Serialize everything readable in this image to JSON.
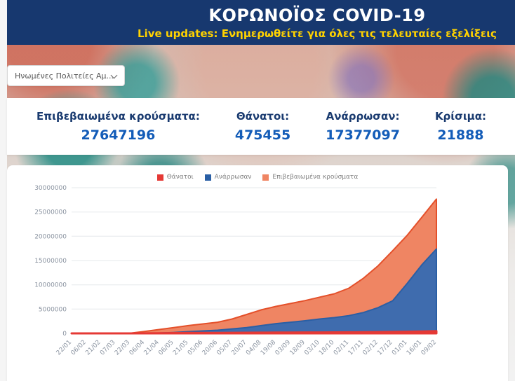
{
  "header": {
    "title": "ΚΟΡΩΝΟΪΟΣ COVID-19",
    "subtitle": "Live updates: Ενημερωθείτε για όλες τις τελευταίες εξελίξεις"
  },
  "country_select": {
    "value": "Ηνωμένες Πολιτείες Αμ..."
  },
  "stats": [
    {
      "label": "Επιβεβαιωμένα κρούσματα:",
      "value": "27647196"
    },
    {
      "label": "Θάνατοι:",
      "value": "475455"
    },
    {
      "label": "Ανάρρωσαν:",
      "value": "17377097"
    },
    {
      "label": "Κρίσιμα:",
      "value": "21888"
    }
  ],
  "chart_data": {
    "type": "area",
    "title": "",
    "legend_position": "top",
    "grid": true,
    "ylim": [
      0,
      30000000
    ],
    "yticks": [
      0,
      5000000,
      10000000,
      15000000,
      20000000,
      25000000,
      30000000
    ],
    "legend": [
      {
        "label": "Θάνατοι",
        "color": "#e53935"
      },
      {
        "label": "Ανάρρωσαν",
        "color": "#2a5fa5"
      },
      {
        "label": "Επιβεβαιωμένα κρούσματα",
        "color": "#ef8563"
      }
    ],
    "categories": [
      "22/01",
      "06/02",
      "21/02",
      "07/03",
      "22/03",
      "06/04",
      "21/04",
      "06/05",
      "21/05",
      "05/06",
      "20/06",
      "05/07",
      "20/07",
      "04/08",
      "19/08",
      "03/09",
      "18/09",
      "03/10",
      "18/10",
      "02/11",
      "17/11",
      "02/12",
      "17/12",
      "01/01",
      "16/01",
      "09/02"
    ],
    "series": [
      {
        "name": "Επιβεβαιωμένα κρούσματα",
        "color": "#e4502a",
        "fill": "#ef8563",
        "stroke_width": 2,
        "values": [
          0,
          12,
          34,
          400,
          33000,
          400000,
          800000,
          1200000,
          1600000,
          1950000,
          2300000,
          2950000,
          3900000,
          4850000,
          5550000,
          6150000,
          6750000,
          7450000,
          8150000,
          9300000,
          11350000,
          13900000,
          17000000,
          20200000,
          23900000,
          27647196
        ]
      },
      {
        "name": "Ανάρρωσαν",
        "color": "#2a5fa5",
        "fill": "#3f6cae",
        "stroke_width": 2,
        "values": [
          0,
          0,
          0,
          7,
          180,
          22000,
          72000,
          190000,
          360000,
          510000,
          650000,
          920000,
          1200000,
          1600000,
          2000000,
          2300000,
          2600000,
          2950000,
          3250000,
          3650000,
          4300000,
          5300000,
          6700000,
          10300000,
          14100000,
          17377097
        ]
      },
      {
        "name": "Θάνατοι",
        "color": "#e53935",
        "fill": "#e53935",
        "stroke_width": 3,
        "values": [
          0,
          0,
          1,
          20,
          420,
          11000,
          45000,
          71000,
          96000,
          110000,
          120000,
          132000,
          142000,
          157000,
          172000,
          187000,
          198000,
          209000,
          221000,
          233000,
          251000,
          272000,
          309000,
          347000,
          399000,
          475455
        ]
      }
    ]
  }
}
